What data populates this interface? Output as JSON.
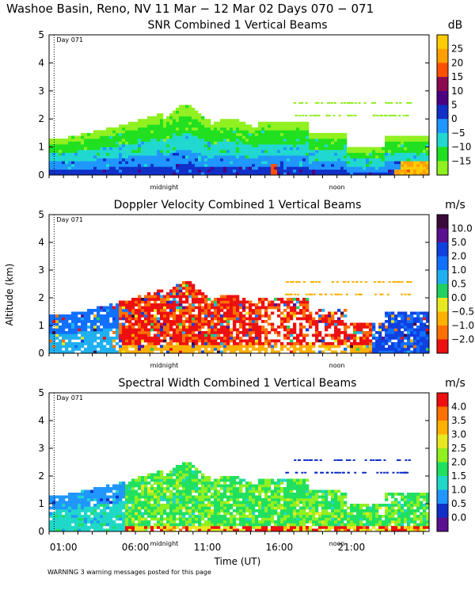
{
  "figure": {
    "title": "Washoe Basin, Reno, NV  11 Mar − 12 Mar 02 Days 070 − 071",
    "ylabel": "Altitude (km)",
    "xlabel": "Time (UT)",
    "warning": "WARNING  3 warning messages posted for this page",
    "x_ticks": [
      "01:00",
      "06:00",
      "11:00",
      "16:00",
      "21:00"
    ],
    "x_tick_hours": [
      1,
      6,
      11,
      16,
      21
    ],
    "day_marker": "Day 071",
    "markers": [
      {
        "label": "midnight",
        "hour": 8.0
      },
      {
        "label": "noon",
        "hour": 20.0
      }
    ]
  },
  "chart_data": [
    {
      "type": "heatmap",
      "title": "SNR Combined 1 Vertical Beams",
      "unit": "dB",
      "xlabel": "Time (UT)",
      "ylabel": "Altitude (km)",
      "xlim": [
        0,
        26.4
      ],
      "ylim": [
        0,
        5
      ],
      "y_ticks": [
        "0",
        "1",
        "2",
        "3",
        "4",
        "5"
      ],
      "colorbar": {
        "labels": [
          "25",
          "20",
          "15",
          "10",
          "5",
          "0",
          "−5",
          "−10",
          "−15"
        ],
        "colors": [
          "#ffcc00",
          "#ffa000",
          "#ff5000",
          "#8b0a50",
          "#4b0082",
          "#1030c8",
          "#2096ff",
          "#20d8d0",
          "#20e020",
          "#90f020"
        ]
      },
      "field": "snr",
      "series": [
        {
          "name": "SNR",
          "values": []
        }
      ]
    },
    {
      "type": "heatmap",
      "title": "Doppler Velocity Combined 1 Vertical Beams",
      "unit": "m/s",
      "xlabel": "Time (UT)",
      "ylabel": "Altitude (km)",
      "xlim": [
        0,
        26.4
      ],
      "ylim": [
        0,
        5
      ],
      "y_ticks": [
        "0",
        "1",
        "2",
        "3",
        "4",
        "5"
      ],
      "colorbar": {
        "labels": [
          "10.0",
          "5.0",
          "2.0",
          "1.0",
          "0.5",
          "0.0",
          "−0.5",
          "−1.0",
          "−2.0"
        ],
        "colors": [
          "#3a0a3a",
          "#5a1090",
          "#1040e0",
          "#1070ff",
          "#20b0f0",
          "#20d060",
          "#e8e820",
          "#ffb000",
          "#ff7000",
          "#ee1010"
        ]
      },
      "field": "doppler",
      "series": [
        {
          "name": "Doppler Velocity",
          "values": []
        }
      ]
    },
    {
      "type": "heatmap",
      "title": "Spectral Width Combined 1 Vertical Beams",
      "unit": "m/s",
      "xlabel": "Time (UT)",
      "ylabel": "Altitude (km)",
      "xlim": [
        0,
        26.4
      ],
      "ylim": [
        0,
        5
      ],
      "y_ticks": [
        "0",
        "1",
        "2",
        "3",
        "4",
        "5"
      ],
      "colorbar": {
        "labels": [
          "4.0",
          "3.5",
          "3.0",
          "2.5",
          "2.0",
          "1.5",
          "1.0",
          "0.5",
          "0.0"
        ],
        "colors": [
          "#ee1010",
          "#ff7000",
          "#ffb000",
          "#e8e820",
          "#90f020",
          "#20e060",
          "#20d8c8",
          "#2096ff",
          "#1030c8",
          "#5a1090"
        ]
      },
      "field": "width",
      "series": [
        {
          "name": "Spectral Width",
          "values": []
        }
      ]
    }
  ]
}
